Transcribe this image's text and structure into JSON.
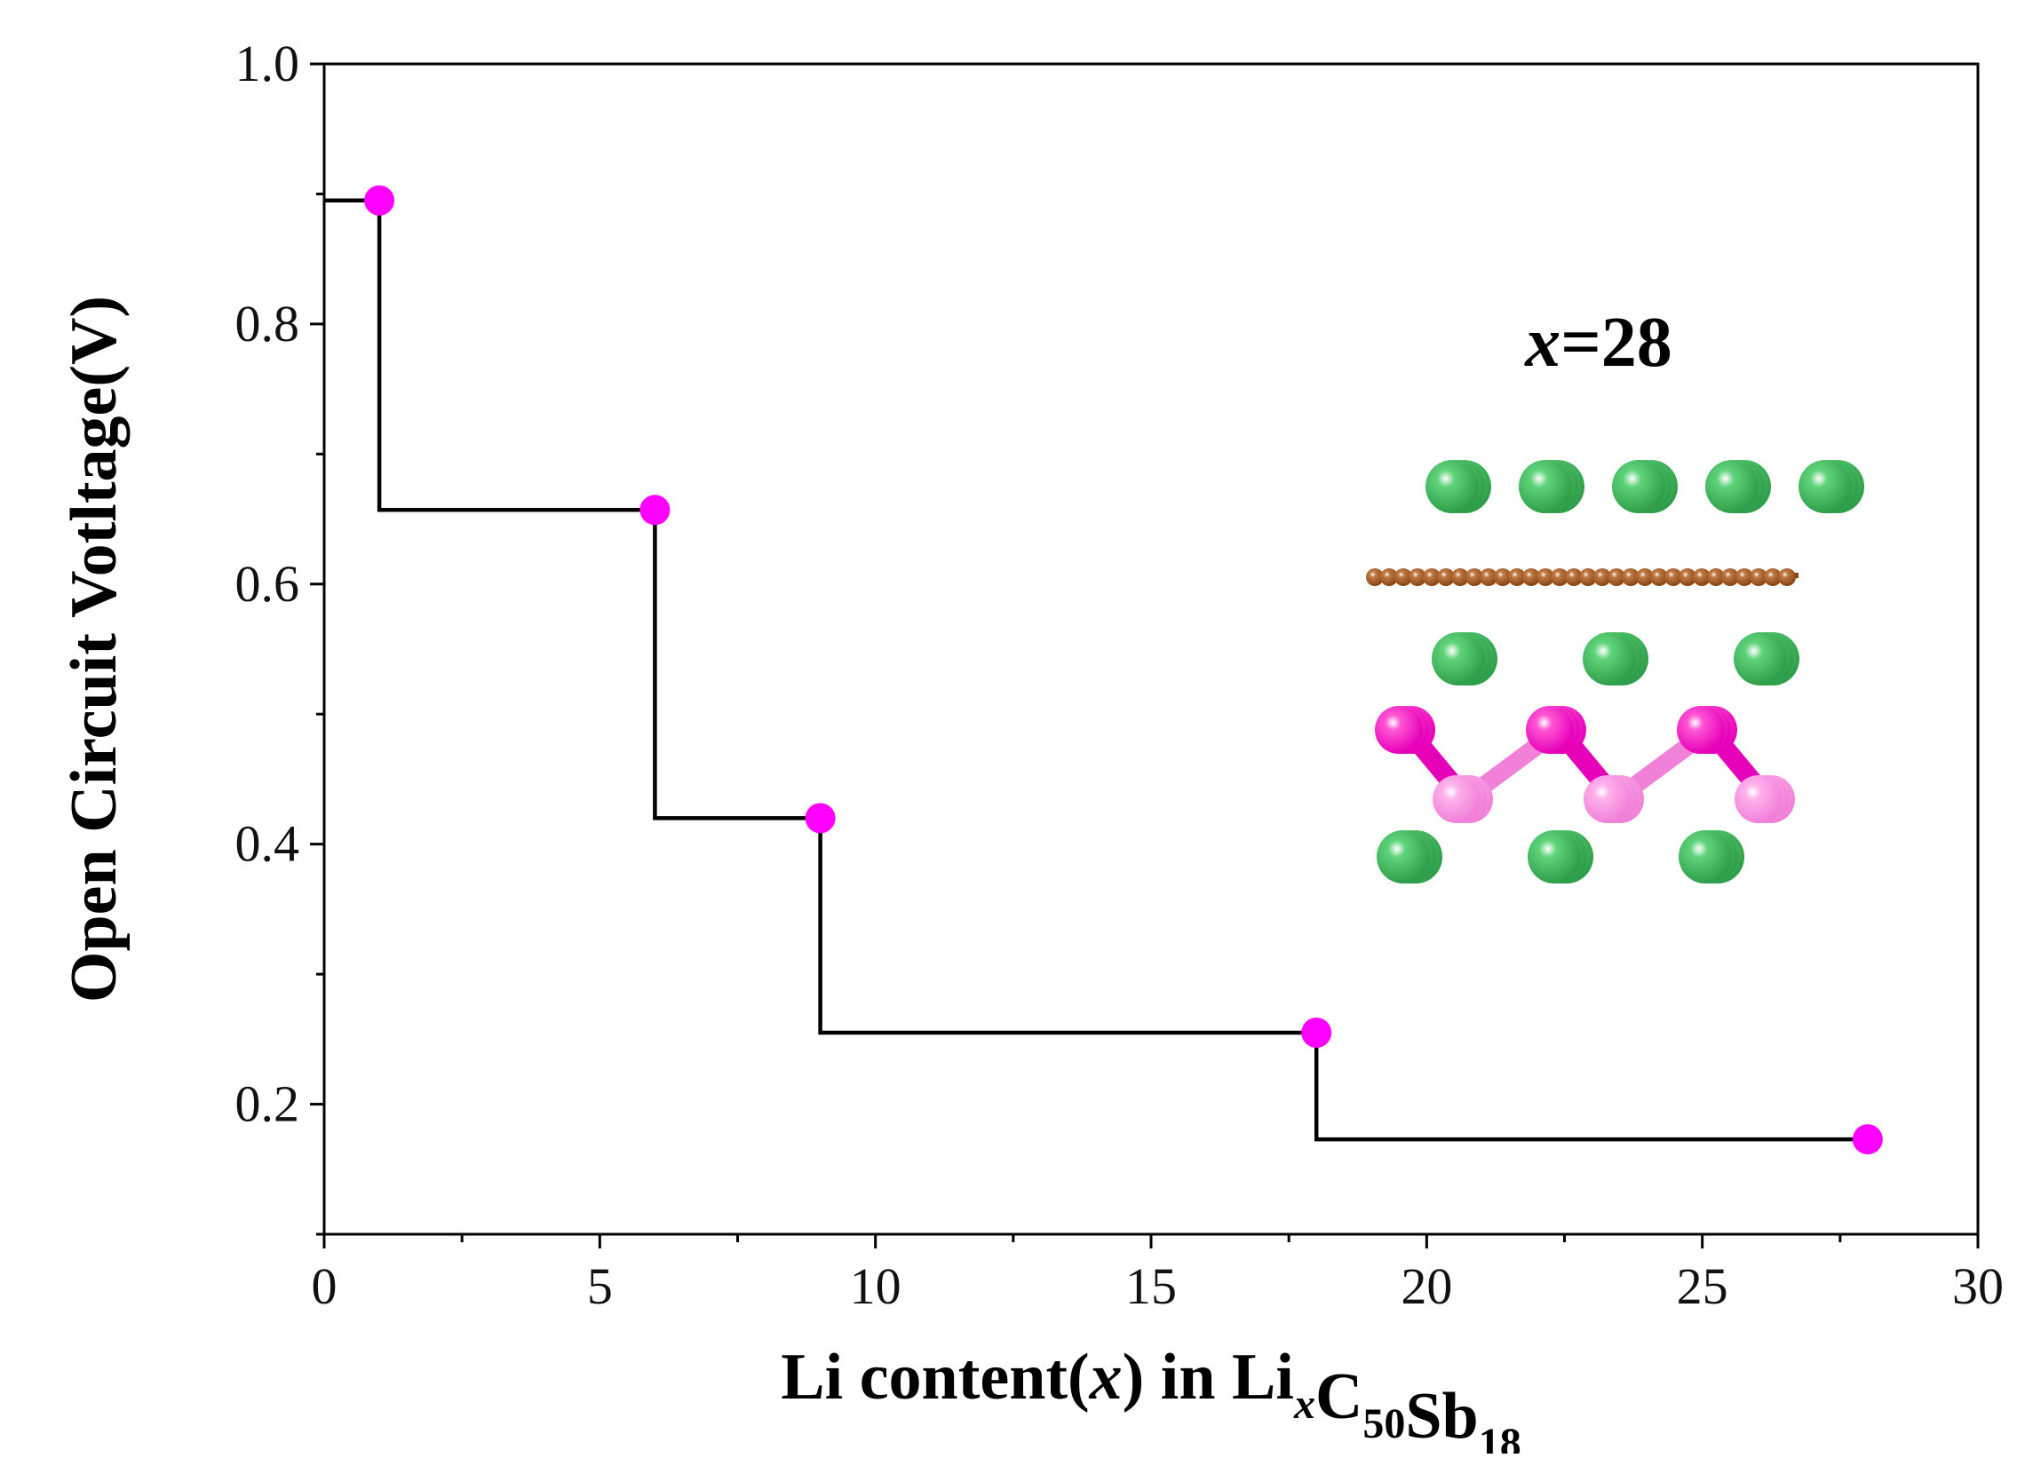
{
  "chart_data": {
    "type": "line",
    "step": true,
    "title": "",
    "xlabel": {
      "parts": [
        {
          "text": "Li content(",
          "style": "normal"
        },
        {
          "text": "x",
          "style": "italic"
        },
        {
          "text": ") in Li",
          "style": "normal"
        },
        {
          "text": "x",
          "style": "italic-sub"
        },
        {
          "text": "C",
          "style": "normal"
        },
        {
          "text": "50",
          "style": "sub"
        },
        {
          "text": "Sb",
          "style": "normal"
        },
        {
          "text": "18",
          "style": "sub"
        }
      ]
    },
    "ylabel": "Open Circuit Votltage(V)",
    "xlim": [
      0,
      30
    ],
    "ylim": [
      0.1,
      1.0
    ],
    "xticks": [
      0,
      5,
      10,
      15,
      20,
      25,
      30
    ],
    "yticks": [
      0.2,
      0.4,
      0.6,
      0.8,
      1.0
    ],
    "xtick_labels": [
      "0",
      "5",
      "10",
      "15",
      "20",
      "25",
      "30"
    ],
    "ytick_labels": [
      "0.2",
      "0.4",
      "0.6",
      "0.8",
      "1.0"
    ],
    "grid": false,
    "series": [
      {
        "points": [
          {
            "x": 1,
            "y": 0.895
          },
          {
            "x": 6,
            "y": 0.657
          },
          {
            "x": 9,
            "y": 0.42
          },
          {
            "x": 18,
            "y": 0.255
          },
          {
            "x": 28,
            "y": 0.173
          }
        ],
        "step_path": [
          {
            "x": 0,
            "y": 0.895
          },
          {
            "x": 1,
            "y": 0.895
          },
          {
            "x": 1,
            "y": 0.657
          },
          {
            "x": 6,
            "y": 0.657
          },
          {
            "x": 6,
            "y": 0.42
          },
          {
            "x": 9,
            "y": 0.42
          },
          {
            "x": 9,
            "y": 0.255
          },
          {
            "x": 18,
            "y": 0.255
          },
          {
            "x": 18,
            "y": 0.173
          },
          {
            "x": 28,
            "y": 0.173
          }
        ],
        "line_color": "#000000",
        "marker_color": "#ff00ff"
      }
    ],
    "annotation": {
      "variable": "x",
      "rest": "=28"
    },
    "inset_structure": {
      "description_colors": {
        "li": "#2f9e4a",
        "carbon": "#8b4513",
        "sb_dark": "#e600b8",
        "sb_light": "#f080d8"
      }
    }
  }
}
